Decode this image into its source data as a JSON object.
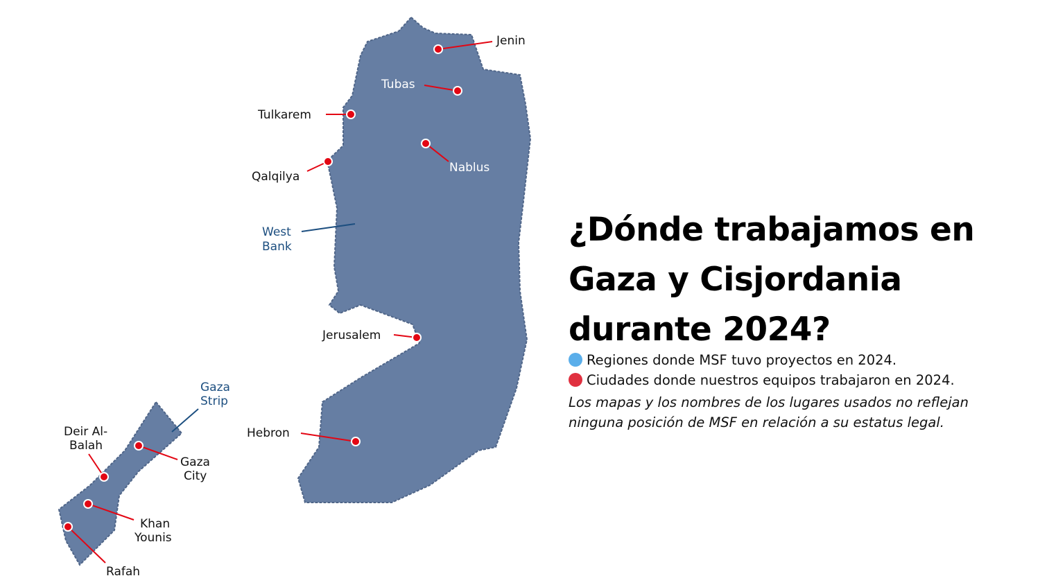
{
  "colors": {
    "region_fill": "#667ea3",
    "city_pin": "#e30613",
    "legend_region": "#5aaeea",
    "legend_city": "#e0303f",
    "region_label": "#1d4f80"
  },
  "regions": [
    {
      "name": "West Bank",
      "label": "West",
      "label2": "Bank"
    },
    {
      "name": "Gaza Strip",
      "label": "Gaza",
      "label2": "Strip"
    }
  ],
  "cities": {
    "jenin": "Jenin",
    "tubas": "Tubas",
    "tulkarem": "Tulkarem",
    "nablus": "Nablus",
    "qalqilya": "Qalqilya",
    "jerusalem": "Jerusalem",
    "hebron": "Hebron",
    "deir1": "Deir Al-",
    "deir2": "Balah",
    "gaza1": "Gaza",
    "gaza2": "City",
    "khan1": "Khan",
    "khan2": "Younis",
    "rafah": "Rafah"
  },
  "title": "¿Dónde trabajamos en Gaza y Cisjordania durante 2024?",
  "legend": [
    {
      "icon": "blue-dot",
      "text": "Regiones donde MSF tuvo proyectos en 2024."
    },
    {
      "icon": "red-dot",
      "text": "Ciudades donde nuestros equipos trabajaron en 2024."
    }
  ],
  "note": "Los mapas y los nombres de los lugares usados no reflejan ninguna posición de MSF en relación a su estatus legal."
}
